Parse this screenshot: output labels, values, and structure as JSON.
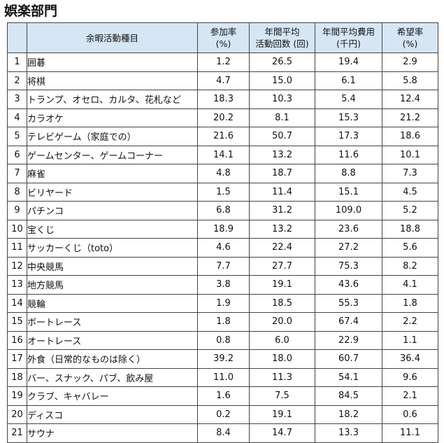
{
  "title": "娯楽部門",
  "headers": {
    "activity": "余暇活動種目",
    "participation": [
      "参加率",
      "(%)"
    ],
    "frequency": [
      "年間平均",
      "活動回数 (回)"
    ],
    "cost": [
      "年間平均費用",
      "(千円)"
    ],
    "desire": [
      "希望率",
      "(%)"
    ]
  },
  "rows": [
    {
      "no": "1",
      "activity": "囲碁",
      "participation": "1.2",
      "frequency": "26.5",
      "cost": "19.4",
      "desire": "2.9"
    },
    {
      "no": "2",
      "activity": "将棋",
      "participation": "4.7",
      "frequency": "15.0",
      "cost": "6.1",
      "desire": "5.8"
    },
    {
      "no": "3",
      "activity": "トランプ、オセロ、カルタ、花札など",
      "participation": "18.3",
      "frequency": "10.3",
      "cost": "5.4",
      "desire": "12.4"
    },
    {
      "no": "4",
      "activity": "カラオケ",
      "participation": "20.2",
      "frequency": "8.1",
      "cost": "15.3",
      "desire": "21.2"
    },
    {
      "no": "5",
      "activity": "テレビゲーム（家庭での）",
      "participation": "21.6",
      "frequency": "50.7",
      "cost": "17.3",
      "desire": "18.6"
    },
    {
      "no": "6",
      "activity": "ゲームセンター、ゲームコーナー",
      "participation": "14.1",
      "frequency": "13.2",
      "cost": "11.6",
      "desire": "10.1"
    },
    {
      "no": "7",
      "activity": "麻雀",
      "participation": "4.8",
      "frequency": "18.7",
      "cost": "8.8",
      "desire": "7.3"
    },
    {
      "no": "8",
      "activity": "ビリヤード",
      "participation": "1.5",
      "frequency": "11.4",
      "cost": "15.1",
      "desire": "4.5"
    },
    {
      "no": "9",
      "activity": "パチンコ",
      "participation": "6.8",
      "frequency": "31.2",
      "cost": "109.0",
      "desire": "5.2"
    },
    {
      "no": "10",
      "activity": "宝くじ",
      "participation": "18.9",
      "frequency": "13.2",
      "cost": "23.6",
      "desire": "18.8"
    },
    {
      "no": "11",
      "activity": "サッカーくじ（toto）",
      "participation": "4.6",
      "frequency": "22.4",
      "cost": "27.2",
      "desire": "5.6"
    },
    {
      "no": "12",
      "activity": "中央競馬",
      "participation": "7.7",
      "frequency": "27.7",
      "cost": "75.3",
      "desire": "8.2"
    },
    {
      "no": "13",
      "activity": "地方競馬",
      "participation": "3.8",
      "frequency": "19.1",
      "cost": "43.6",
      "desire": "4.1"
    },
    {
      "no": "14",
      "activity": "競輪",
      "participation": "1.9",
      "frequency": "18.5",
      "cost": "55.3",
      "desire": "1.8"
    },
    {
      "no": "15",
      "activity": "ボートレース",
      "participation": "1.8",
      "frequency": "20.0",
      "cost": "67.4",
      "desire": "2.2"
    },
    {
      "no": "16",
      "activity": "オートレース",
      "participation": "0.8",
      "frequency": "6.0",
      "cost": "22.9",
      "desire": "1.1"
    },
    {
      "no": "17",
      "activity": "外食（日常的なものは除く）",
      "participation": "39.2",
      "frequency": "18.0",
      "cost": "60.7",
      "desire": "36.4"
    },
    {
      "no": "18",
      "activity": "バー、スナック、パブ、飲み屋",
      "participation": "11.0",
      "frequency": "11.3",
      "cost": "54.1",
      "desire": "9.6"
    },
    {
      "no": "19",
      "activity": "クラブ、キャバレー",
      "participation": "1.6",
      "frequency": "7.5",
      "cost": "84.5",
      "desire": "2.1"
    },
    {
      "no": "20",
      "activity": "ディスコ",
      "participation": "0.2",
      "frequency": "19.1",
      "cost": "18.2",
      "desire": "0.6"
    },
    {
      "no": "21",
      "activity": "サウナ",
      "participation": "8.4",
      "frequency": "14.7",
      "cost": "13.3",
      "desire": "11.1"
    }
  ]
}
